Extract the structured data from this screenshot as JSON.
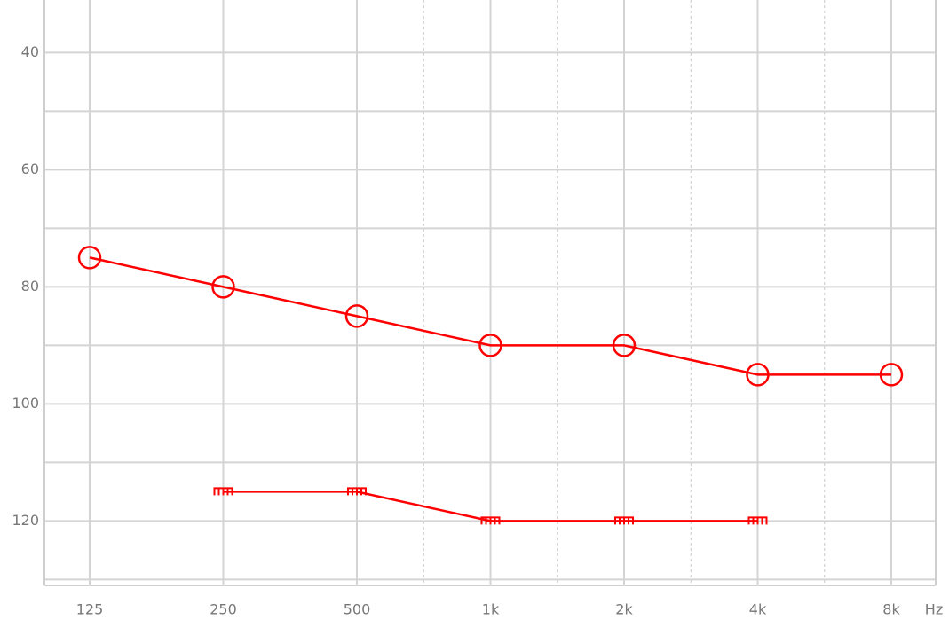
{
  "chart_data": {
    "type": "line",
    "categories": [
      "125",
      "250",
      "500",
      "1k",
      "2k",
      "4k",
      "8k"
    ],
    "x_unit": "Hz",
    "ylim": [
      31,
      131
    ],
    "y_inverted": true,
    "yticks": [
      40,
      60,
      80,
      100,
      120
    ],
    "minor_yticks": [
      50,
      70,
      90,
      110,
      130
    ],
    "grid": true,
    "series": [
      {
        "color": "#ff0000",
        "marker": "circle",
        "values": [
          75,
          80,
          85,
          90,
          90,
          95,
          95
        ]
      },
      {
        "color": "#ff0000",
        "marker": "comb",
        "values": [
          null,
          115,
          115,
          120,
          120,
          120,
          null
        ]
      }
    ]
  }
}
